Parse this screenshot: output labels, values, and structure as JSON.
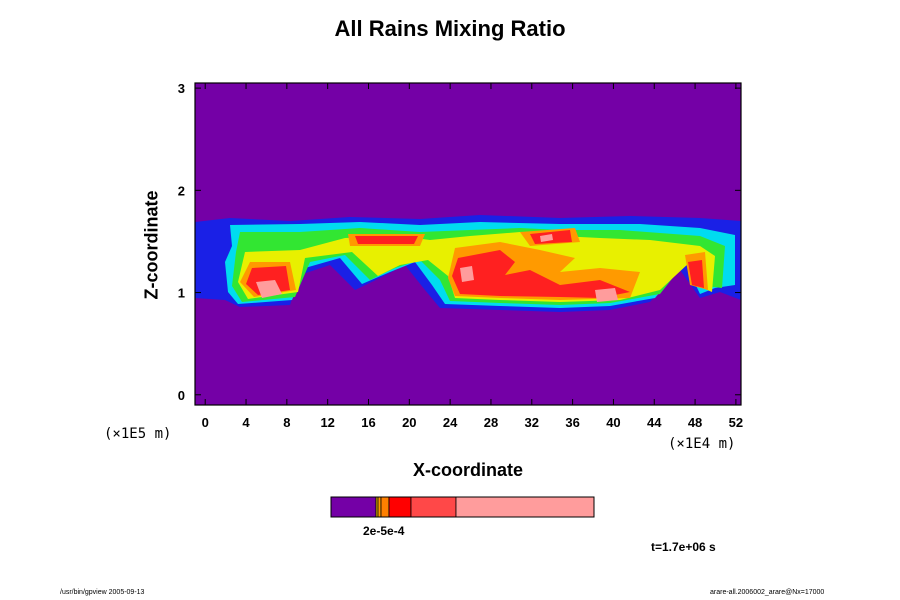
{
  "chart_data": {
    "type": "heatmap",
    "title": "All Rains Mixing Ratio",
    "xlabel": "X-coordinate",
    "ylabel": "Z-coordinate",
    "x_unit": "(×1E4 m)",
    "y_unit": "(×1E5 m)",
    "xlim": [
      -1,
      52.5
    ],
    "ylim": [
      -0.1,
      3.05
    ],
    "x_ticks": [
      0,
      4,
      8,
      12,
      16,
      20,
      24,
      28,
      32,
      36,
      40,
      44,
      48,
      52
    ],
    "y_ticks": [
      0,
      1,
      2,
      3
    ],
    "background_color": "#7400a6",
    "cloud_band_z": [
      0.9,
      1.75
    ],
    "colorbar": {
      "colors": [
        "#7400a6",
        "#f0c000",
        "#ff9a00",
        "#ff8000",
        "#ff0000",
        "#ff4848",
        "#ff9c9c"
      ],
      "widths": [
        45,
        2,
        3,
        8,
        22,
        45,
        138
      ],
      "label": "2e-5e-4"
    }
  },
  "time_label": "t=1.7e+06 s",
  "footer_left": "/usr/bin/gpview 2005-09-13",
  "footer_right": "arare-all.2006002_arare@Nx=17000"
}
